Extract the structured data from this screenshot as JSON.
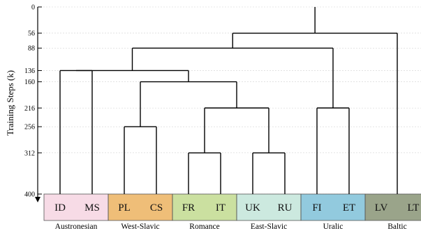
{
  "chart_data": {
    "type": "dendrogram",
    "ylabel": "Training Steps (k)",
    "y_ticks": [
      0,
      56,
      88,
      136,
      160,
      216,
      256,
      312,
      400
    ],
    "ylim": [
      0,
      400
    ],
    "y_direction": "down",
    "grid": true,
    "leaves": [
      {
        "label": "ID",
        "group": "Austronesian"
      },
      {
        "label": "MS",
        "group": "Austronesian"
      },
      {
        "label": "PL",
        "group": "West-Slavic"
      },
      {
        "label": "CS",
        "group": "West-Slavic"
      },
      {
        "label": "FR",
        "group": "Romance"
      },
      {
        "label": "IT",
        "group": "Romance"
      },
      {
        "label": "UK",
        "group": "East-Slavic"
      },
      {
        "label": "RU",
        "group": "East-Slavic"
      },
      {
        "label": "FI",
        "group": "Uralic"
      },
      {
        "label": "ET",
        "group": "Uralic"
      },
      {
        "label": "LV",
        "group": "Baltic"
      },
      {
        "label": "LT",
        "group": "Baltic"
      }
    ],
    "groups": [
      {
        "name": "Austronesian",
        "color": "#f7dbe6"
      },
      {
        "name": "West-Slavic",
        "color": "#efbe78"
      },
      {
        "name": "Romance",
        "color": "#cbe0a0"
      },
      {
        "name": "East-Slavic",
        "color": "#cce9df"
      },
      {
        "name": "Uralic",
        "color": "#92cade"
      },
      {
        "name": "Baltic",
        "color": "#9aa48a"
      }
    ],
    "merges": [
      {
        "left": "ID",
        "right": "MS",
        "step": 136
      },
      {
        "left": "PL",
        "right": "CS",
        "step": 256
      },
      {
        "left": "FR",
        "right": "IT",
        "step": 312
      },
      {
        "left": "UK",
        "right": "RU",
        "step": 312
      },
      {
        "left": "FR+IT",
        "right": "UK+RU",
        "step": 216
      },
      {
        "left": "PL+CS",
        "right": "FR+IT+UK+RU",
        "step": 160
      },
      {
        "left": "ID+MS",
        "right": "PL+CS+FR+IT+UK+RU",
        "step": 136
      },
      {
        "left": "FI",
        "right": "ET",
        "step": 216
      },
      {
        "left": "ID+MS+PL+CS+FR+IT+UK+RU",
        "right": "FI+ET",
        "step": 88
      },
      {
        "left": "ID+MS+PL+CS+FR+IT+UK+RU+FI+ET",
        "right": "LV+LT",
        "step": 56
      },
      {
        "left": "ALL",
        "right": null,
        "step": 0
      }
    ]
  }
}
